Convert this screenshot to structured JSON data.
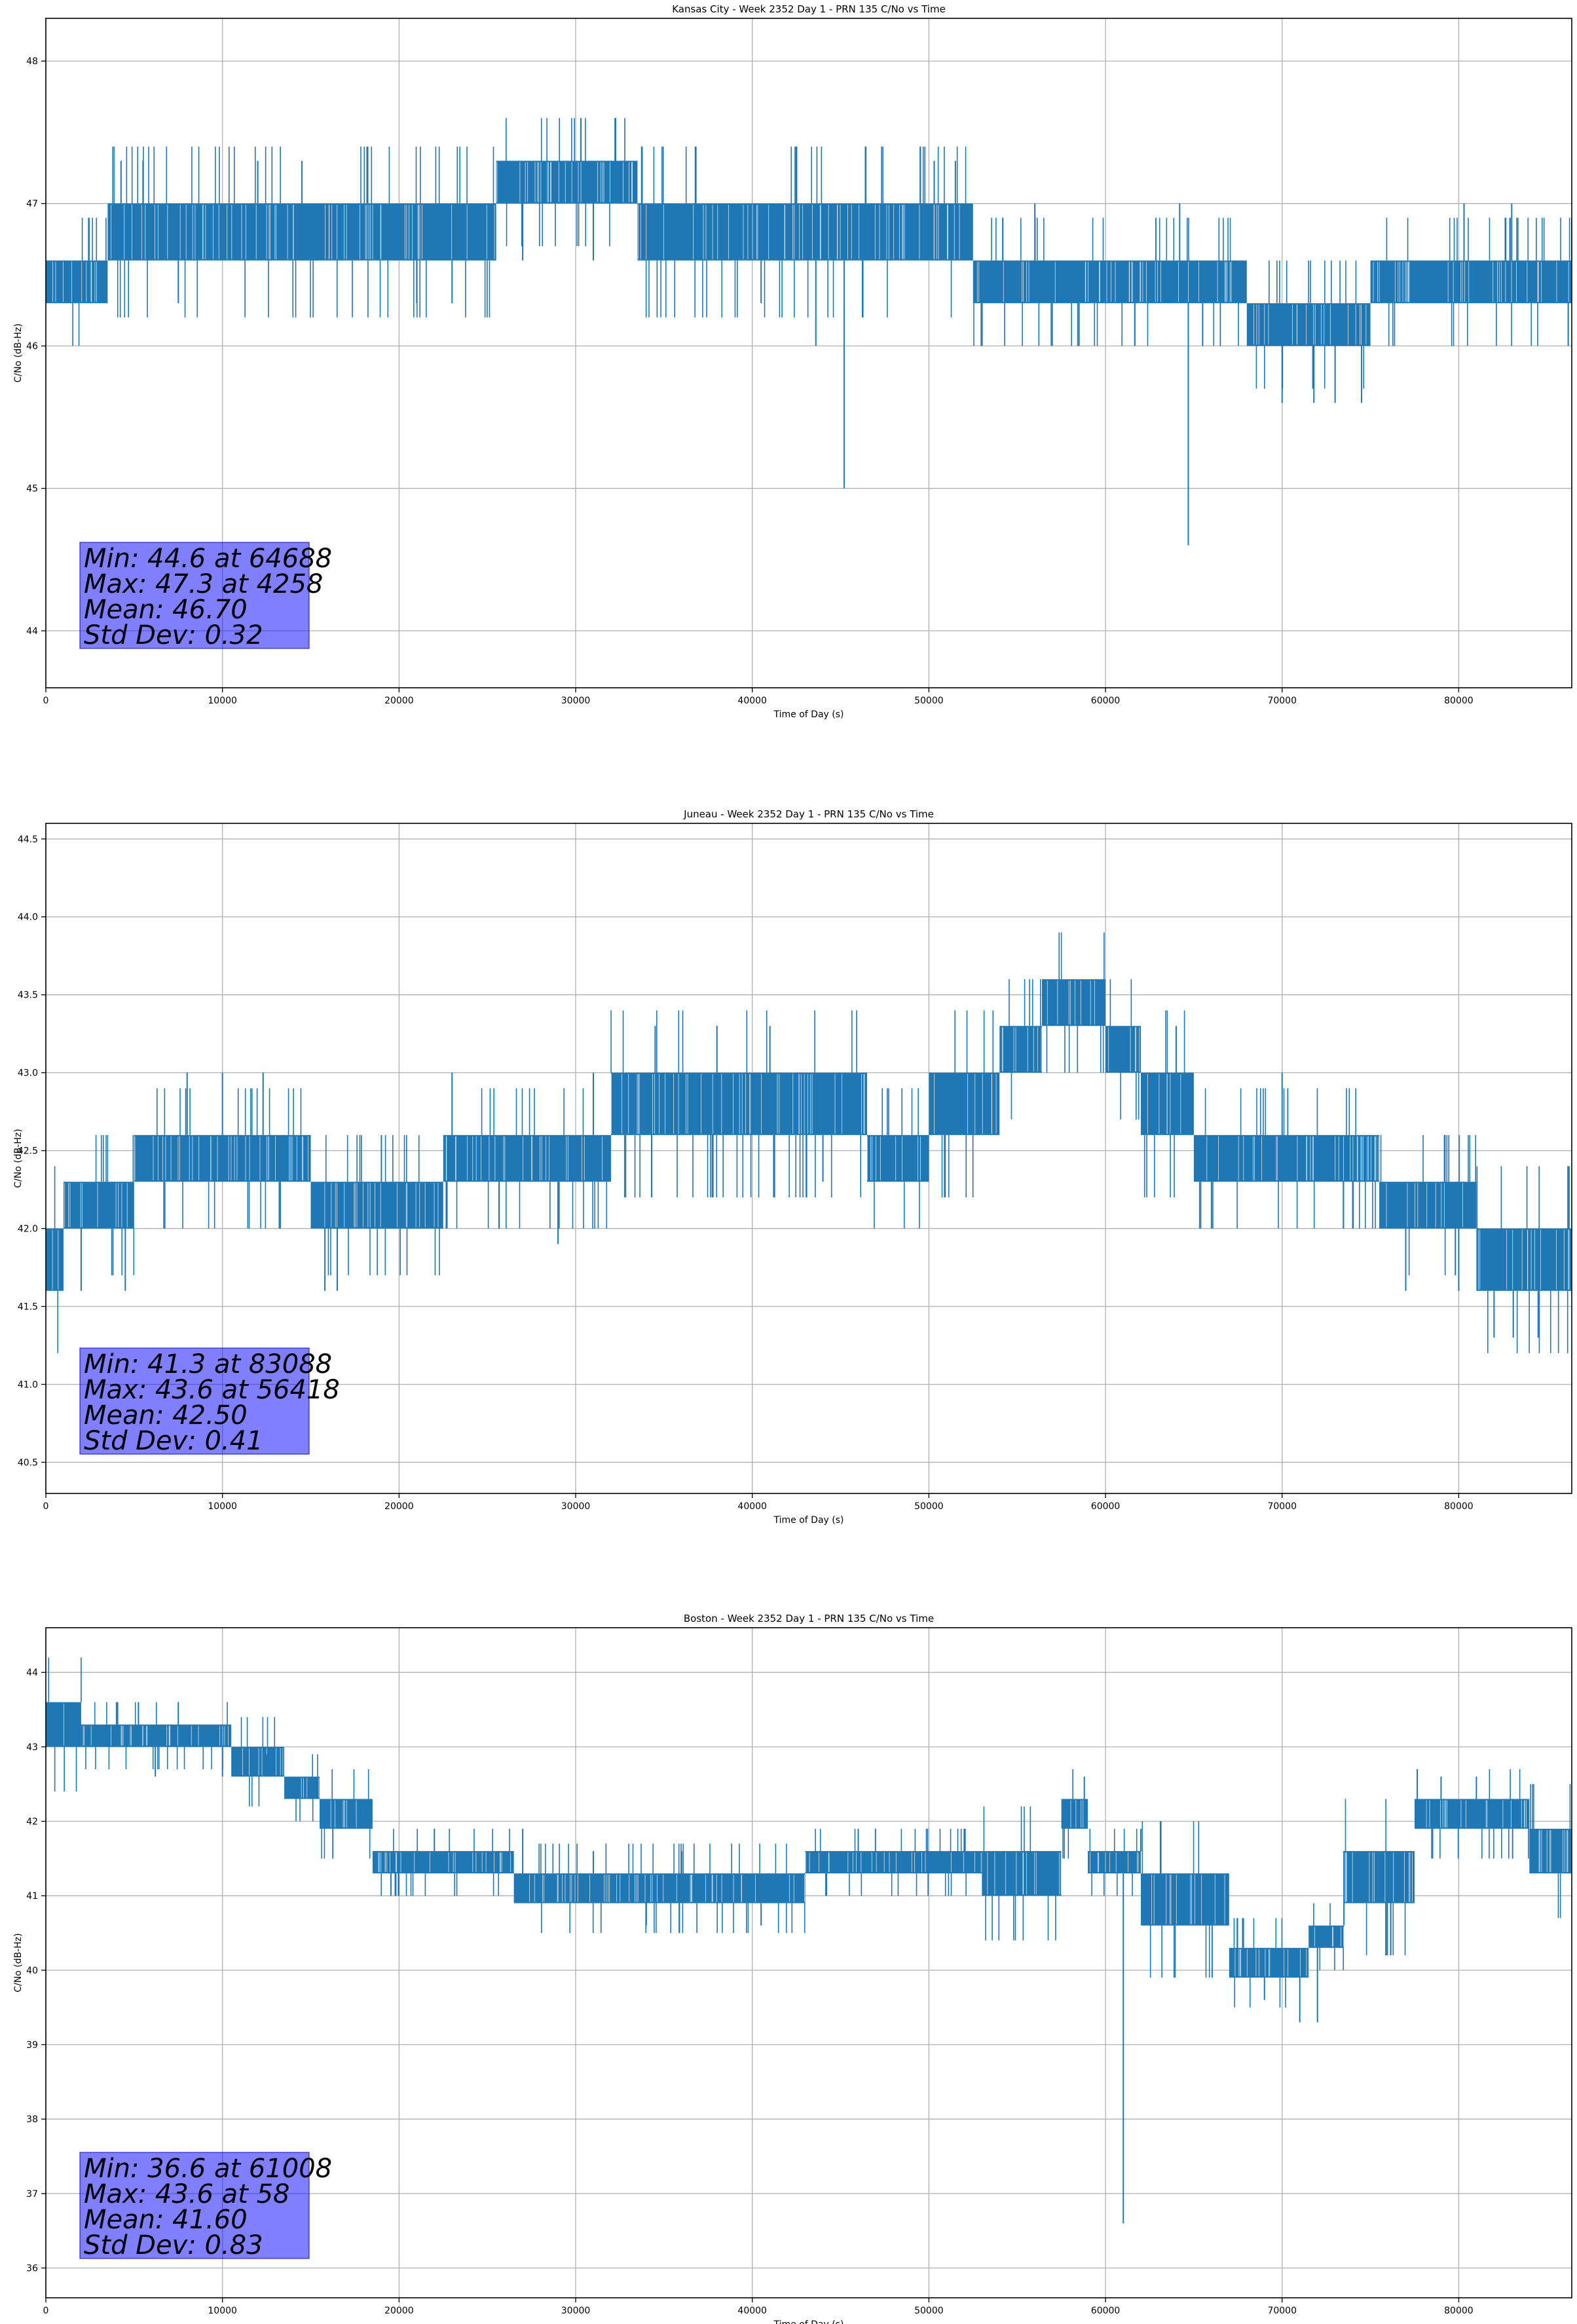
{
  "chart_data": [
    {
      "type": "line",
      "title": "Kansas City - Week 2352 Day 1 - PRN 135 C/No vs Time",
      "xlabel": "Time of Day (s)",
      "ylabel": "C/No (dB-Hz)",
      "xlim": [
        0,
        86400
      ],
      "ylim": [
        43.6,
        48.3
      ],
      "xticks": [
        0,
        10000,
        20000,
        30000,
        40000,
        50000,
        60000,
        70000,
        80000
      ],
      "xtick_labels": [
        "0",
        "10000",
        "20000",
        "30000",
        "40000",
        "50000",
        "60000",
        "70000",
        "80000"
      ],
      "yticks": [
        44,
        45,
        46,
        47,
        48
      ],
      "ytick_labels": [
        "44",
        "45",
        "46",
        "47",
        "48"
      ],
      "grid": true,
      "color": "#1f77b4",
      "series": [
        {
          "bands": [
            [
              0,
              3500,
              46.3,
              46.6
            ],
            [
              3500,
              25500,
              46.6,
              47.0
            ],
            [
              25500,
              33500,
              47.0,
              47.3
            ],
            [
              33500,
              52500,
              46.6,
              47.0
            ],
            [
              52500,
              68000,
              46.3,
              46.6
            ],
            [
              68000,
              75000,
              46.0,
              46.3
            ],
            [
              75000,
              86400,
              46.3,
              46.6
            ]
          ],
          "spikes": [
            [
              4258,
              47.3
            ],
            [
              5500,
              47.3
            ],
            [
              7500,
              46.3
            ],
            [
              12000,
              47.3
            ],
            [
              14500,
              47.3
            ],
            [
              21000,
              46.3
            ],
            [
              23000,
              46.3
            ],
            [
              27000,
              46.6
            ],
            [
              31000,
              46.6
            ],
            [
              36000,
              46.6
            ],
            [
              40500,
              46.3
            ],
            [
              43600,
              46.0
            ],
            [
              45200,
              45.0
            ],
            [
              50300,
              47.3
            ],
            [
              51500,
              47.3
            ],
            [
              56000,
              47.0
            ],
            [
              58500,
              46.0
            ],
            [
              64200,
              47.0
            ],
            [
              64688,
              44.6
            ],
            [
              65500,
              46.0
            ],
            [
              70000,
              45.6
            ],
            [
              71800,
              45.6
            ],
            [
              73000,
              45.6
            ],
            [
              74500,
              45.6
            ],
            [
              80300,
              47.0
            ],
            [
              83000,
              47.0
            ],
            [
              86200,
              46.0
            ]
          ]
        }
      ],
      "annotation": [
        "Min: 44.6 at 64688",
        "Max: 47.3 at 4258",
        "Mean: 46.70",
        "Std Dev: 0.32"
      ]
    },
    {
      "type": "line",
      "title": "Juneau - Week 2352 Day 1 - PRN 135 C/No vs Time",
      "xlabel": "Time of Day (s)",
      "ylabel": "C/No (dB-Hz)",
      "xlim": [
        0,
        86400
      ],
      "ylim": [
        40.3,
        44.6
      ],
      "xticks": [
        0,
        10000,
        20000,
        30000,
        40000,
        50000,
        60000,
        70000,
        80000
      ],
      "xtick_labels": [
        "0",
        "10000",
        "20000",
        "30000",
        "40000",
        "50000",
        "60000",
        "70000",
        "80000"
      ],
      "yticks": [
        40.5,
        41.0,
        41.5,
        42.0,
        42.5,
        43.0,
        43.5,
        44.0,
        44.5
      ],
      "ytick_labels": [
        "40.5",
        "41.0",
        "41.5",
        "42.0",
        "42.5",
        "43.0",
        "43.5",
        "44.0",
        "44.5"
      ],
      "grid": true,
      "color": "#1f77b4",
      "series": [
        {
          "bands": [
            [
              0,
              1000,
              41.6,
              42.0
            ],
            [
              1000,
              5000,
              42.0,
              42.3
            ],
            [
              5000,
              15000,
              42.3,
              42.6
            ],
            [
              15000,
              22500,
              42.0,
              42.3
            ],
            [
              22500,
              32000,
              42.3,
              42.6
            ],
            [
              32000,
              46500,
              42.6,
              43.0
            ],
            [
              46500,
              50000,
              42.3,
              42.6
            ],
            [
              50000,
              54000,
              42.6,
              43.0
            ],
            [
              54000,
              56400,
              43.0,
              43.3
            ],
            [
              56400,
              60000,
              43.3,
              43.6
            ],
            [
              60000,
              62000,
              43.0,
              43.3
            ],
            [
              62000,
              65000,
              42.6,
              43.0
            ],
            [
              65000,
              75500,
              42.3,
              42.6
            ],
            [
              75500,
              81000,
              42.0,
              42.3
            ],
            [
              81000,
              86400,
              41.6,
              42.0
            ]
          ],
          "spikes": [
            [
              2000,
              41.6
            ],
            [
              4500,
              41.6
            ],
            [
              8000,
              43.0
            ],
            [
              10000,
              43.0
            ],
            [
              12300,
              43.0
            ],
            [
              15800,
              41.6
            ],
            [
              16500,
              41.6
            ],
            [
              19000,
              42.6
            ],
            [
              23000,
              43.0
            ],
            [
              29000,
              41.9
            ],
            [
              31000,
              43.0
            ],
            [
              34500,
              43.3
            ],
            [
              38000,
              43.3
            ],
            [
              41000,
              43.3
            ],
            [
              44000,
              42.3
            ],
            [
              48000,
              42.3
            ],
            [
              57000,
              43.6
            ],
            [
              59500,
              43.6
            ],
            [
              64000,
              43.3
            ],
            [
              66000,
              42.0
            ],
            [
              70000,
              43.0
            ],
            [
              74000,
              42.0
            ],
            [
              77000,
              41.6
            ],
            [
              80000,
              41.6
            ],
            [
              82000,
              41.3
            ],
            [
              83088,
              41.3
            ],
            [
              84500,
              41.3
            ]
          ]
        }
      ],
      "annotation": [
        "Min: 41.3 at 83088",
        "Max: 43.6 at 56418",
        "Mean: 42.50",
        "Std Dev: 0.41"
      ]
    },
    {
      "type": "line",
      "title": "Boston - Week 2352 Day 1 - PRN 135 C/No vs Time",
      "xlabel": "Time of Day (s)",
      "ylabel": "C/No (dB-Hz)",
      "xlim": [
        0,
        86400
      ],
      "ylim": [
        35.6,
        44.6
      ],
      "xticks": [
        0,
        10000,
        20000,
        30000,
        40000,
        50000,
        60000,
        70000,
        80000
      ],
      "xtick_labels": [
        "0",
        "10000",
        "20000",
        "30000",
        "40000",
        "50000",
        "60000",
        "70000",
        "80000"
      ],
      "yticks": [
        36,
        37,
        38,
        39,
        40,
        41,
        42,
        43,
        44
      ],
      "ytick_labels": [
        "36",
        "37",
        "38",
        "39",
        "40",
        "41",
        "42",
        "43",
        "44"
      ],
      "grid": true,
      "color": "#1f77b4",
      "series": [
        {
          "bands": [
            [
              0,
              2000,
              43.0,
              43.6
            ],
            [
              2000,
              10500,
              43.0,
              43.3
            ],
            [
              10500,
              13500,
              42.6,
              43.0
            ],
            [
              13500,
              15500,
              42.3,
              42.6
            ],
            [
              15500,
              18500,
              41.9,
              42.3
            ],
            [
              18500,
              26500,
              41.3,
              41.6
            ],
            [
              26500,
              43000,
              40.9,
              41.3
            ],
            [
              43000,
              53000,
              41.3,
              41.6
            ],
            [
              53000,
              57500,
              41.0,
              41.6
            ],
            [
              57500,
              59000,
              41.9,
              42.3
            ],
            [
              59000,
              62000,
              41.3,
              41.6
            ],
            [
              62000,
              67000,
              40.6,
              41.3
            ],
            [
              67000,
              71500,
              39.9,
              40.3
            ],
            [
              71500,
              73500,
              40.3,
              40.6
            ],
            [
              73500,
              77500,
              40.9,
              41.6
            ],
            [
              77500,
              84000,
              41.9,
              42.3
            ],
            [
              84000,
              86400,
              41.3,
              41.9
            ]
          ],
          "spikes": [
            [
              58,
              43.6
            ],
            [
              1500,
              43.6
            ],
            [
              4000,
              43.6
            ],
            [
              6200,
              42.6
            ],
            [
              7500,
              43.6
            ],
            [
              10000,
              42.6
            ],
            [
              12500,
              42.9
            ],
            [
              15000,
              42.6
            ],
            [
              17000,
              41.9
            ],
            [
              22000,
              41.9
            ],
            [
              27000,
              41.9
            ],
            [
              31000,
              41.6
            ],
            [
              34000,
              40.6
            ],
            [
              36000,
              41.6
            ],
            [
              40500,
              40.6
            ],
            [
              46000,
              41.9
            ],
            [
              52000,
              41.9
            ],
            [
              58800,
              42.6
            ],
            [
              61008,
              36.6
            ],
            [
              62000,
              41.9
            ],
            [
              69000,
              39.6
            ],
            [
              71000,
              39.3
            ],
            [
              72000,
              39.3
            ],
            [
              73500,
              41.6
            ],
            [
              79000,
              42.6
            ],
            [
              81000,
              42.6
            ],
            [
              86000,
              41.3
            ]
          ]
        }
      ],
      "annotation": [
        "Min: 36.6 at 61008",
        "Max: 43.6 at 58",
        "Mean: 41.60",
        "Std Dev: 0.83"
      ]
    }
  ]
}
